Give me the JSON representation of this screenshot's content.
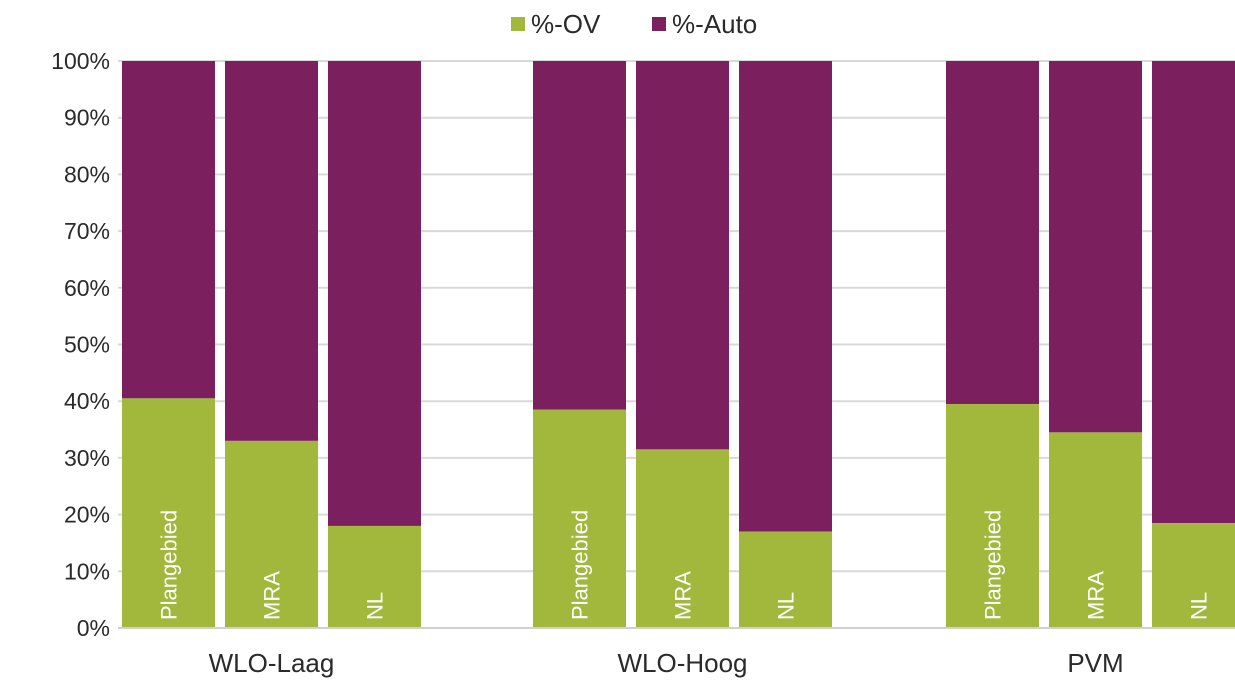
{
  "chart_data": {
    "type": "bar",
    "stacked": true,
    "percent_stacked": true,
    "legend": {
      "placement": "top-center",
      "entries": [
        {
          "name": "%-OV",
          "color": "#a2b83c"
        },
        {
          "name": "%-Auto",
          "color": "#7b1f5e"
        }
      ]
    },
    "y_ticks": [
      "0%",
      "10%",
      "20%",
      "30%",
      "40%",
      "50%",
      "60%",
      "70%",
      "80%",
      "90%",
      "100%"
    ],
    "ylim": [
      0,
      100
    ],
    "grid": true,
    "groups": [
      {
        "label": "WLO-Laag",
        "bars": [
          {
            "label": "Plangebied",
            "ov": 40.5,
            "auto": 59.5
          },
          {
            "label": "MRA",
            "ov": 33,
            "auto": 67
          },
          {
            "label": "NL",
            "ov": 18,
            "auto": 82
          }
        ]
      },
      {
        "label": "WLO-Hoog",
        "bars": [
          {
            "label": "Plangebied",
            "ov": 38.5,
            "auto": 61.5
          },
          {
            "label": "MRA",
            "ov": 31.5,
            "auto": 68.5
          },
          {
            "label": "NL",
            "ov": 17,
            "auto": 83
          }
        ]
      },
      {
        "label": "PVM",
        "bars": [
          {
            "label": "Plangebied",
            "ov": 39.5,
            "auto": 60.5
          },
          {
            "label": "MRA",
            "ov": 34.5,
            "auto": 65.5
          },
          {
            "label": "NL",
            "ov": 18.5,
            "auto": 81.5
          }
        ]
      }
    ]
  }
}
